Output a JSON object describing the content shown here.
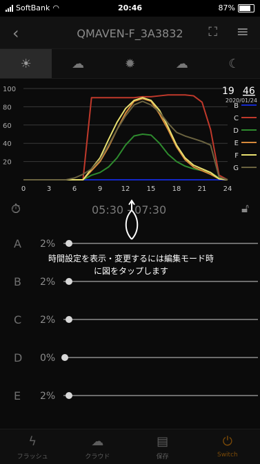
{
  "statusbar": {
    "carrier": "SoftBank",
    "time": "20:46",
    "battery": "87%",
    "battery_level": 0.87
  },
  "header": {
    "title": "QMAVEN-F_3A3832"
  },
  "chart_data": {
    "type": "line",
    "x": [
      0,
      1,
      2,
      3,
      4,
      5,
      6,
      7,
      8,
      9,
      10,
      11,
      12,
      13,
      14,
      15,
      16,
      17,
      18,
      19,
      20,
      21,
      22,
      23,
      24
    ],
    "xticks": [
      "0",
      "3",
      "6",
      "9",
      "12",
      "15",
      "18",
      "21",
      "24"
    ],
    "yticks": [
      "100",
      "80",
      "60",
      "40",
      "20"
    ],
    "ylim": [
      0,
      100
    ],
    "xlim": [
      0,
      24
    ],
    "current_time": "19",
    "current_time_minutes": "46",
    "current_date": "2020/01/24",
    "series": [
      {
        "name": "B",
        "color": "#1428c8",
        "values": [
          0,
          0,
          0,
          0,
          0,
          0,
          0,
          0,
          0,
          0,
          0,
          0,
          0,
          0,
          0,
          0,
          0,
          0,
          0,
          0,
          0,
          0,
          0,
          0,
          0
        ]
      },
      {
        "name": "C",
        "color": "#c0392b",
        "values": [
          0,
          0,
          0,
          0,
          0,
          0,
          0,
          0,
          90,
          90,
          90,
          90,
          90,
          90,
          91,
          91,
          92,
          93,
          93,
          93,
          92,
          85,
          55,
          5,
          0
        ]
      },
      {
        "name": "D",
        "color": "#2e8b2e",
        "values": [
          0,
          0,
          0,
          0,
          0,
          0,
          0,
          0,
          5,
          8,
          14,
          24,
          38,
          48,
          50,
          49,
          40,
          28,
          20,
          15,
          12,
          10,
          8,
          2,
          0
        ]
      },
      {
        "name": "E",
        "color": "#d68a3b",
        "values": [
          0,
          0,
          0,
          0,
          0,
          0,
          0,
          0,
          10,
          20,
          36,
          55,
          73,
          86,
          89,
          86,
          72,
          55,
          36,
          22,
          14,
          10,
          6,
          1,
          0
        ]
      },
      {
        "name": "F",
        "color": "#e8e070",
        "values": [
          0,
          0,
          0,
          0,
          0,
          0,
          0,
          0,
          12,
          24,
          44,
          63,
          78,
          87,
          90,
          87,
          76,
          58,
          38,
          24,
          16,
          12,
          8,
          1,
          0
        ]
      },
      {
        "name": "G",
        "color": "#6b6340",
        "values": [
          0,
          0,
          0,
          0,
          0,
          0,
          2,
          6,
          12,
          22,
          38,
          55,
          70,
          82,
          86,
          82,
          74,
          62,
          52,
          48,
          45,
          42,
          38,
          3,
          0
        ]
      }
    ]
  },
  "timer": {
    "range": "05:30 - 07:30"
  },
  "channels": [
    {
      "letter": "A",
      "pct": "2%",
      "value": 0.02
    },
    {
      "letter": "B",
      "pct": "2%",
      "value": 0.02
    },
    {
      "letter": "C",
      "pct": "2%",
      "value": 0.02
    },
    {
      "letter": "D",
      "pct": "0%",
      "value": 0.0
    },
    {
      "letter": "E",
      "pct": "2%",
      "value": 0.02
    }
  ],
  "hint": {
    "line1": "時間設定を表示・変更するには編集モード時",
    "line2": "に図をタップします"
  },
  "tabs": [
    {
      "label": "フラッシュ",
      "icon": "flash-icon",
      "active": false
    },
    {
      "label": "クラウド",
      "icon": "cloud-icon",
      "active": false
    },
    {
      "label": "保存",
      "icon": "save-icon",
      "active": false
    },
    {
      "label": "Switch",
      "icon": "power-icon",
      "active": true
    }
  ],
  "colors": {
    "background": "#0b0b0b",
    "accent": "#7b4a08"
  }
}
